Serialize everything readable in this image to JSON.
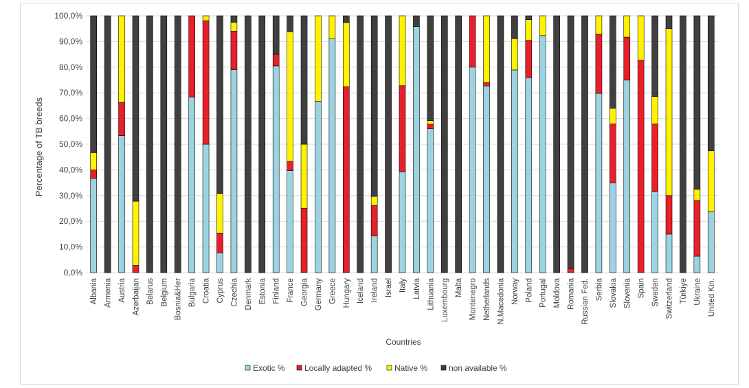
{
  "chart_data": {
    "type": "bar",
    "stacked": true,
    "xlabel": "Countries",
    "ylabel": "Percentage of TB breeds",
    "ylim": [
      0,
      100
    ],
    "yticks": [
      "0,0%",
      "10,0%",
      "20,0%",
      "30,0%",
      "40,0%",
      "50,0%",
      "60,0%",
      "70,0%",
      "80,0%",
      "90,0%",
      "100,0%"
    ],
    "grid": true,
    "legend_position": "bottom",
    "categories": [
      "Albania",
      "Armenia",
      "Austria",
      "Azerbaijan",
      "Belarus",
      "Belgium",
      "Bosnia&Her",
      "Bulgaria",
      "Croatia",
      "Cyprus",
      "Czechia",
      "Denmark",
      "Estonia",
      "Finland",
      "France",
      "Georgia",
      "Germany",
      "Greece",
      "Hungary",
      "Iceland",
      "Ireland",
      "Israel",
      "Italy",
      "Latvia",
      "Lithuania",
      "Luxembourg",
      "Malta",
      "Montenegro",
      "Netherlands",
      "N.Macedonia",
      "Norway",
      "Poland",
      "Portugal",
      "Moldova",
      "Romania",
      "Russian Fed.",
      "Serbia",
      "Slovakia",
      "Slovenia",
      "Spain",
      "Sweden",
      "Switzerland",
      "Türkiye",
      "Ukraine",
      "United Kin."
    ],
    "series": [
      {
        "name": "Exotic %",
        "color": "#9DD3E0",
        "values": [
          36.7,
          0,
          53.3,
          0,
          0,
          0,
          0,
          68.4,
          50.0,
          7.7,
          79.0,
          0,
          0,
          80.5,
          39.7,
          0,
          66.7,
          91.0,
          0,
          0,
          14.3,
          0,
          39.3,
          95.8,
          56.0,
          0,
          0,
          80.0,
          72.7,
          0,
          78.9,
          75.9,
          92.3,
          0,
          0,
          0,
          69.8,
          35.0,
          75.0,
          0,
          31.6,
          15.0,
          0,
          6.4,
          23.7
        ]
      },
      {
        "name": "Locally adapted %",
        "color": "#E8202A",
        "values": [
          3.3,
          0,
          13.0,
          2.8,
          0,
          0,
          0,
          31.6,
          48.1,
          7.7,
          15.0,
          0,
          0,
          4.5,
          3.6,
          25.0,
          0,
          0,
          72.4,
          0,
          11.8,
          0,
          33.5,
          0,
          1.8,
          0,
          0,
          20.0,
          1.3,
          0,
          0,
          14.5,
          0,
          0,
          1.6,
          0,
          23.0,
          22.9,
          16.7,
          82.7,
          26.3,
          15.0,
          0,
          21.7,
          0
        ]
      },
      {
        "name": "Native %",
        "color": "#FFF200",
        "values": [
          6.7,
          0,
          33.7,
          25.0,
          0,
          0,
          0,
          0,
          1.9,
          15.4,
          3.5,
          0,
          0,
          0,
          50.5,
          25.0,
          33.3,
          9.0,
          25.0,
          0,
          3.6,
          0,
          27.2,
          0,
          1.4,
          0,
          0,
          0,
          26.0,
          0,
          12.2,
          8.1,
          7.7,
          0,
          0,
          0,
          7.2,
          6.1,
          8.3,
          17.3,
          10.7,
          65.0,
          0,
          4.4,
          23.7
        ]
      },
      {
        "name": "non available %",
        "color": "#404040",
        "values": [
          53.3,
          100,
          0,
          72.2,
          100,
          100,
          100,
          0,
          0,
          69.2,
          2.5,
          100,
          100,
          15.0,
          6.2,
          50.0,
          0,
          0,
          2.6,
          100,
          70.3,
          100,
          0,
          4.2,
          40.8,
          100,
          100,
          0,
          0,
          100,
          8.9,
          1.5,
          0,
          100,
          98.4,
          100,
          0,
          36.0,
          0,
          0,
          31.4,
          5.0,
          100,
          67.5,
          52.6
        ]
      }
    ]
  }
}
